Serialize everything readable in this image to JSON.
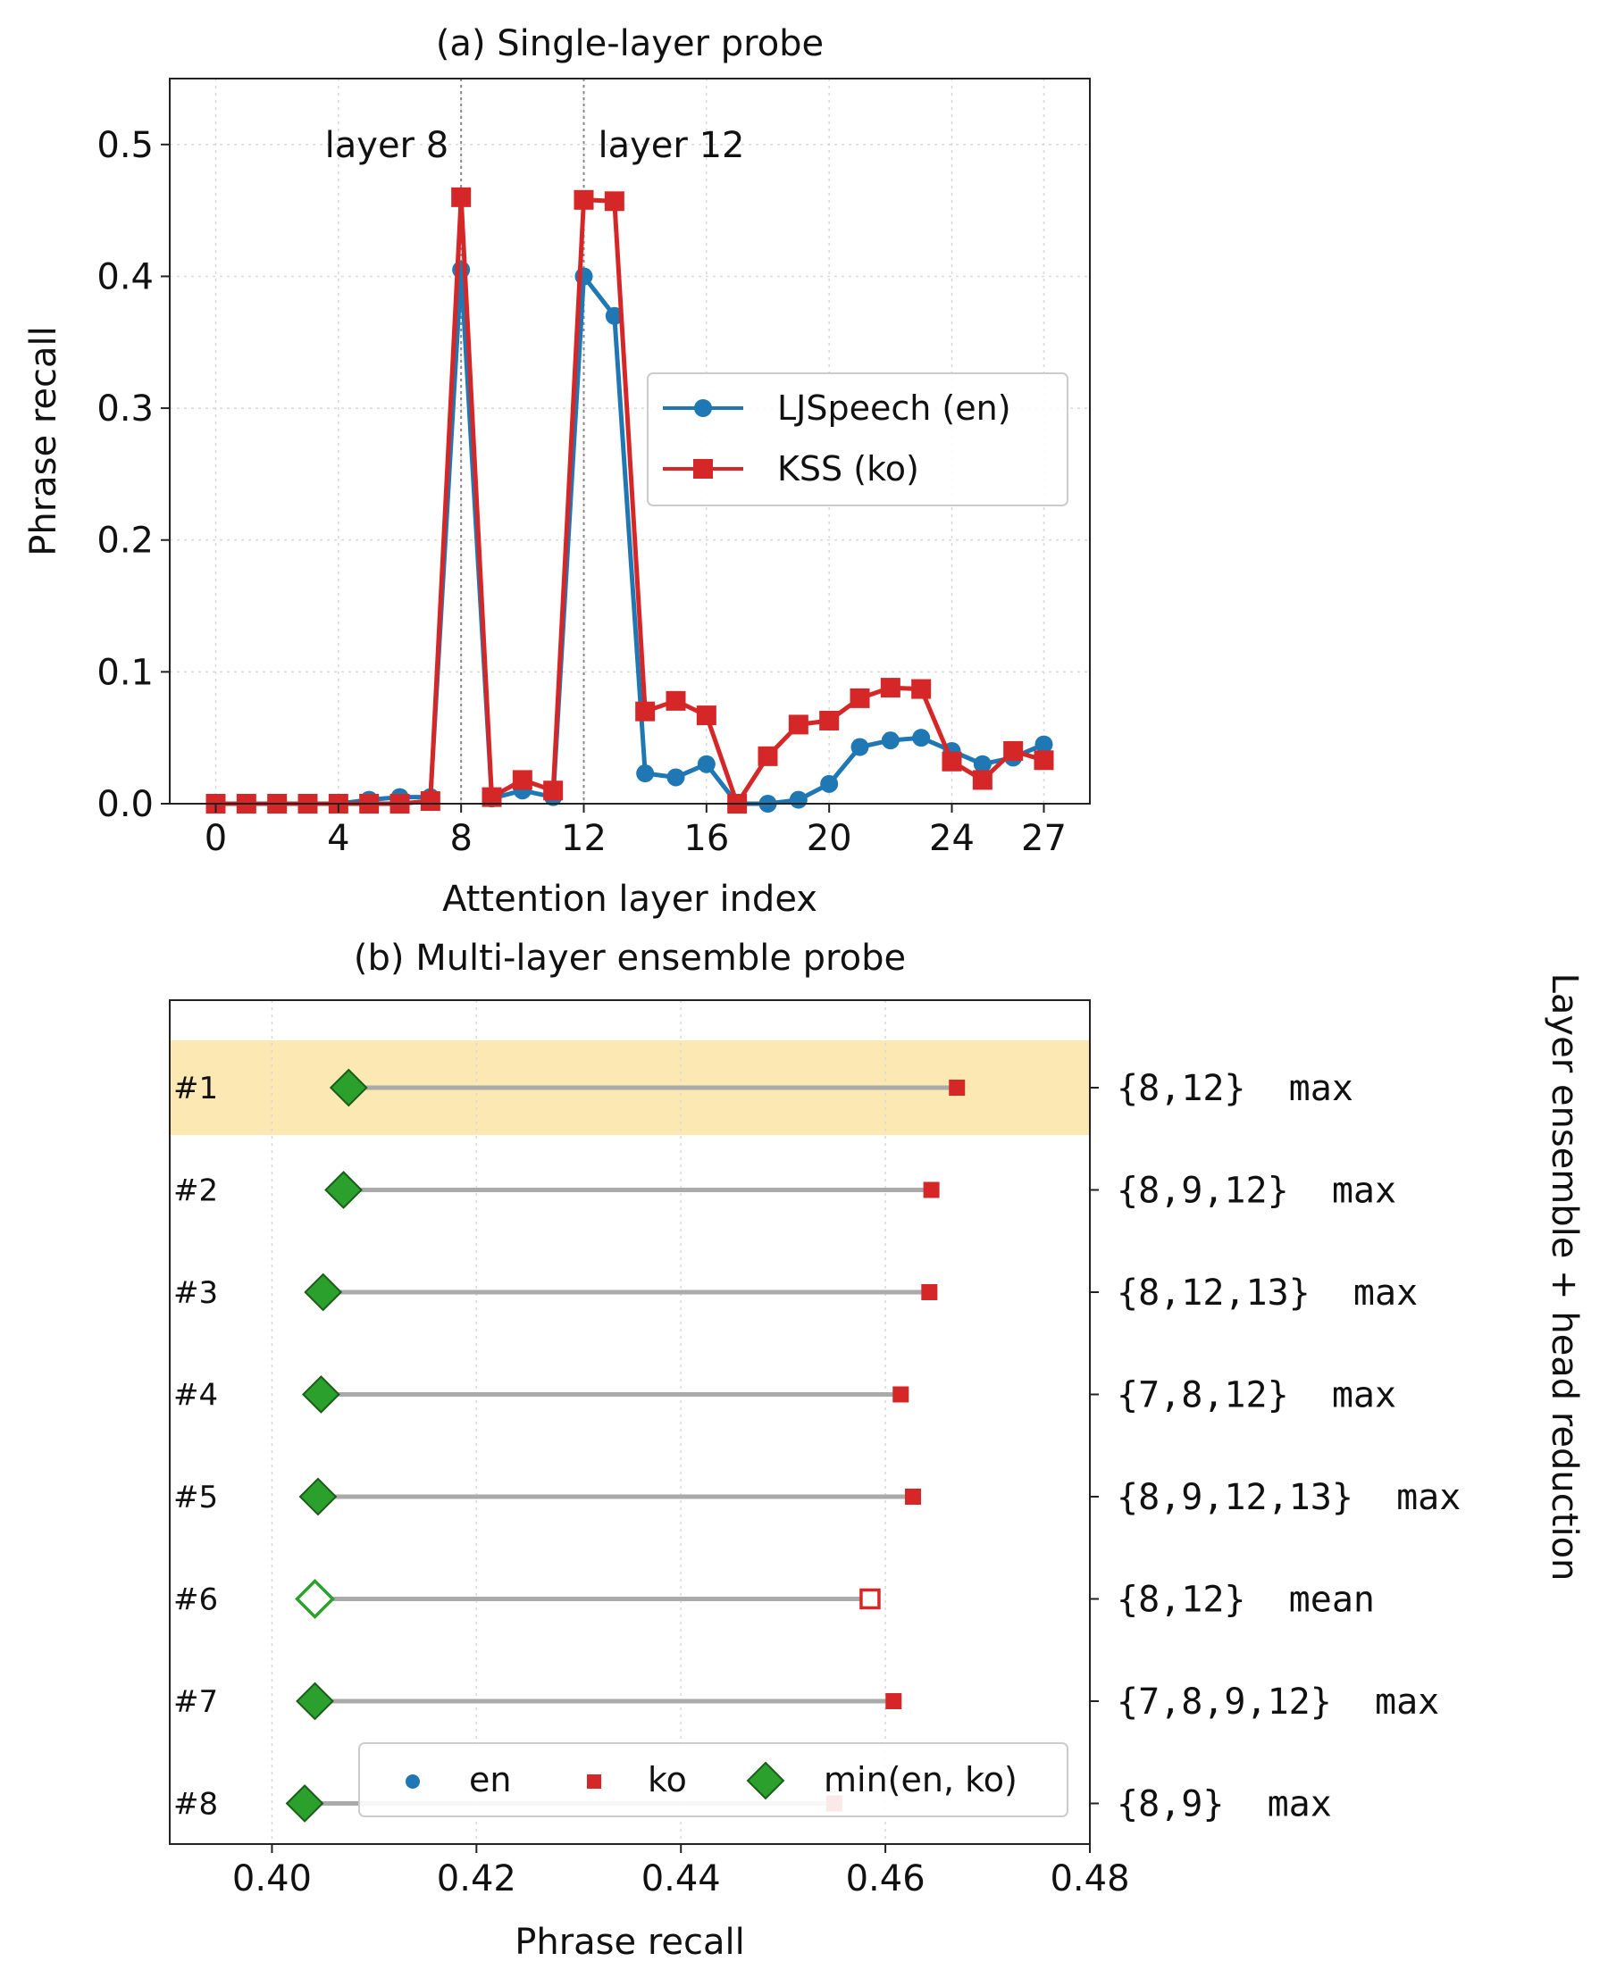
{
  "chart_data": [
    {
      "type": "line",
      "title": "(a) Single-layer probe",
      "xlabel": "Attention layer index",
      "ylabel": "Phrase recall",
      "xlim": [
        -1.5,
        28.5
      ],
      "ylim": [
        0,
        0.55
      ],
      "xticks": [
        0,
        4,
        8,
        12,
        16,
        20,
        24,
        27
      ],
      "yticks": [
        0.0,
        0.1,
        0.2,
        0.3,
        0.4,
        0.5
      ],
      "ytick_labels": [
        "0.0",
        "0.1",
        "0.2",
        "0.3",
        "0.4",
        "0.5"
      ],
      "grid": true,
      "legend_position": "center-right",
      "annotations": [
        {
          "x": 8,
          "text": "layer 8"
        },
        {
          "x": 12,
          "text": "layer 12"
        }
      ],
      "x": [
        0,
        1,
        2,
        3,
        4,
        5,
        6,
        7,
        8,
        9,
        10,
        11,
        12,
        13,
        14,
        15,
        16,
        17,
        18,
        19,
        20,
        21,
        22,
        23,
        24,
        25,
        26,
        27
      ],
      "series": [
        {
          "name": "LJSpeech (en)",
          "color": "#1f77b4",
          "marker": "circle",
          "values": [
            0.0,
            0.0,
            0.0,
            0.0,
            0.0,
            0.003,
            0.005,
            0.005,
            0.405,
            0.004,
            0.01,
            0.005,
            0.4,
            0.37,
            0.023,
            0.02,
            0.03,
            0.0,
            0.0,
            0.003,
            0.015,
            0.043,
            0.048,
            0.05,
            0.04,
            0.03,
            0.035,
            0.045
          ]
        },
        {
          "name": "KSS (ko)",
          "color": "#d62728",
          "marker": "square",
          "values": [
            0.0,
            0.0,
            0.0,
            0.0,
            0.0,
            0.0,
            0.0,
            0.002,
            0.46,
            0.005,
            0.018,
            0.01,
            0.458,
            0.457,
            0.07,
            0.078,
            0.067,
            0.0,
            0.036,
            0.06,
            0.063,
            0.08,
            0.088,
            0.087,
            0.032,
            0.018,
            0.04,
            0.033
          ]
        }
      ]
    },
    {
      "type": "scatter",
      "title": "(b) Multi-layer ensemble probe",
      "xlabel": "Phrase recall",
      "ylabel": "Layer ensemble + head reduction",
      "xlim": [
        0.39,
        0.48
      ],
      "xticks": [
        0.4,
        0.42,
        0.44,
        0.46,
        0.48
      ],
      "xtick_labels": [
        "0.40",
        "0.42",
        "0.44",
        "0.46",
        "0.48"
      ],
      "grid": true,
      "legend_position": "bottom",
      "legend": [
        {
          "name": "en",
          "color": "#1f77b4",
          "marker": "circle"
        },
        {
          "name": "ko",
          "color": "#d62728",
          "marker": "square"
        },
        {
          "name": "min(en, ko)",
          "color": "#2ca02c",
          "marker": "diamond"
        }
      ],
      "highlight_color": "#fce8b2",
      "rows": [
        {
          "rank": "#1",
          "label": "{8,12}  max",
          "min": 0.4075,
          "ko": 0.467,
          "highlight": true,
          "hollow": false
        },
        {
          "rank": "#2",
          "label": "{8,9,12}  max",
          "min": 0.407,
          "ko": 0.4645,
          "highlight": false,
          "hollow": false
        },
        {
          "rank": "#3",
          "label": "{8,12,13}  max",
          "min": 0.405,
          "ko": 0.4643,
          "highlight": false,
          "hollow": false
        },
        {
          "rank": "#4",
          "label": "{7,8,12}  max",
          "min": 0.4048,
          "ko": 0.4615,
          "highlight": false,
          "hollow": false
        },
        {
          "rank": "#5",
          "label": "{8,9,12,13}  max",
          "min": 0.4045,
          "ko": 0.4627,
          "highlight": false,
          "hollow": false
        },
        {
          "rank": "#6",
          "label": "{8,12}  mean",
          "min": 0.4042,
          "ko": 0.4585,
          "highlight": false,
          "hollow": true
        },
        {
          "rank": "#7",
          "label": "{7,8,9,12}  max",
          "min": 0.4042,
          "ko": 0.4608,
          "highlight": false,
          "hollow": false
        },
        {
          "rank": "#8",
          "label": "{8,9}  max",
          "min": 0.4032,
          "ko": 0.455,
          "highlight": false,
          "hollow": false
        }
      ]
    }
  ]
}
